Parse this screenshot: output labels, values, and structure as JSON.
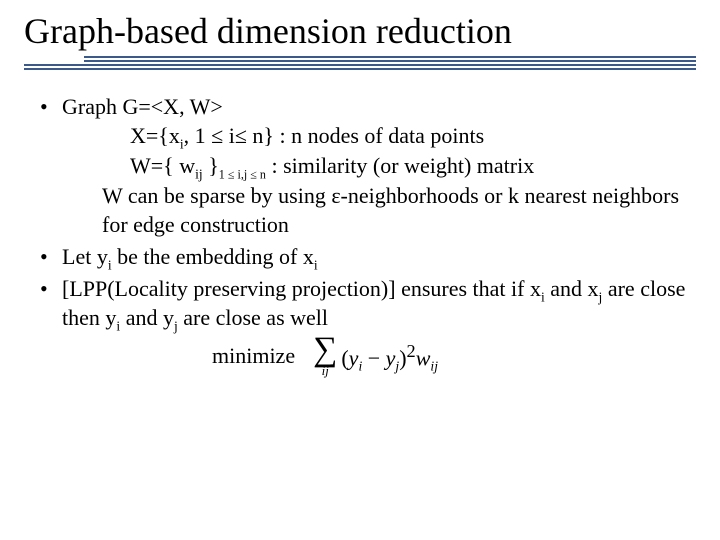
{
  "title": "Graph-based dimension reduction",
  "rule": {
    "color": "#3b5a8a"
  },
  "bullets": {
    "b1": {
      "line1": "Graph G=<X, W>",
      "line2_pre": "X={x",
      "line2_sub1": "i",
      "line2_mid": ", 1 ≤ i≤ n} : n nodes of data points",
      "line3_pre": "W={ w",
      "line3_sub1": "ij",
      "line3_mid": " }",
      "line3_subexpr": "1 ≤ i,j ≤ n",
      "line3_tail": " : similarity (or weight) matrix",
      "line4": "W can be sparse by using ε-neighborhoods or k nearest neighbors for edge construction"
    },
    "b2": {
      "pre": "Let y",
      "sub1": "i",
      "mid": " be the embedding of x",
      "sub2": "i"
    },
    "b3": {
      "pre": "[LPP(Locality preserving projection)] ensures that if x",
      "sub1": "i",
      "mid1": " and x",
      "sub2": "j",
      "mid2": " are close then y",
      "sub3": "i",
      "mid3": " and y",
      "sub4": "j",
      "tail": " are close as well"
    },
    "minimize_label": "minimize",
    "formula": {
      "sigma_sub": "ij",
      "open": "(",
      "y1": "y",
      "y1sub": "i",
      "minus": " − ",
      "y2": "y",
      "y2sub": "j",
      "close": ")",
      "sq": "2",
      "w": "w",
      "wsub": "ij"
    }
  }
}
